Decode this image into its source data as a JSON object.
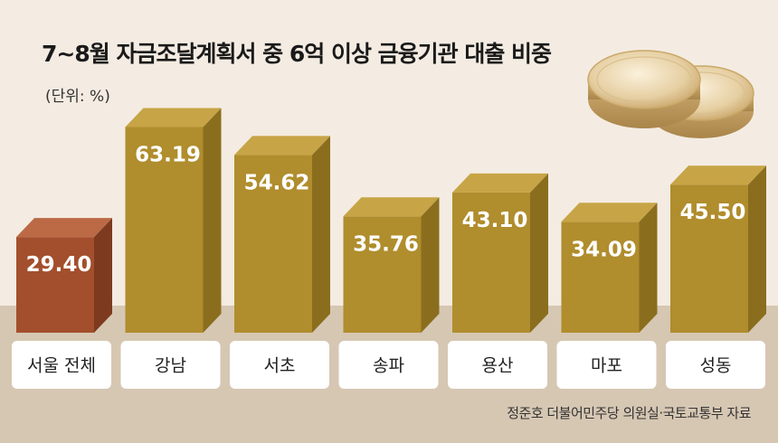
{
  "chart_data": {
    "type": "bar",
    "title": "7~8월 자금조달계획서 중 6억 이상 금융기관 대출 비중",
    "unit": "(단위: %)",
    "categories": [
      "서울 전체",
      "강남",
      "서초",
      "송파",
      "용산",
      "마포",
      "성동"
    ],
    "values": [
      29.4,
      63.19,
      54.62,
      35.76,
      43.1,
      34.09,
      45.5
    ],
    "value_labels": [
      "29.40",
      "63.19",
      "54.62",
      "35.76",
      "43.10",
      "34.09",
      "45.50"
    ],
    "highlight_index": 0,
    "source": "정준호 더불어민주당 의원실·국토교통부 자료",
    "colors": {
      "highlight_front": "#a34f2d",
      "highlight_side": "#7e3a1f",
      "highlight_top": "#bb6a45",
      "bar_front": "#b08d2d",
      "bar_side": "#8a6e1e",
      "bar_top": "#c7a446",
      "ground": "#d6c7b3",
      "background": "#f4ece2"
    }
  }
}
